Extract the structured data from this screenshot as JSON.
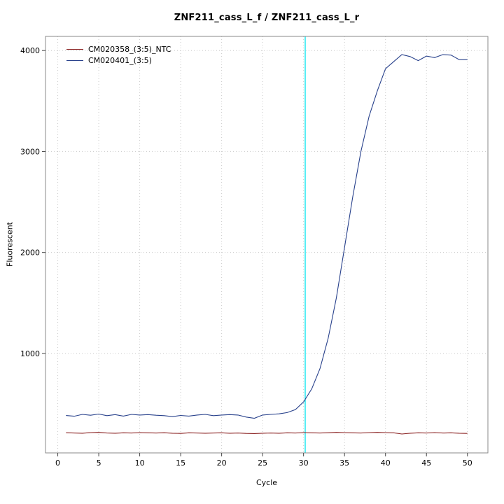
{
  "chart_data": {
    "type": "line",
    "title": "ZNF211_cass_L_f / ZNF211_cass_L_r",
    "xlabel": "Cycle",
    "ylabel": "Fluorescent",
    "xlim": [
      -1.5,
      52.5
    ],
    "ylim": [
      15,
      4140
    ],
    "xticks": [
      0,
      5,
      10,
      15,
      20,
      25,
      30,
      35,
      40,
      45,
      50
    ],
    "yticks": [
      1000,
      2000,
      3000,
      4000
    ],
    "grid": true,
    "legend_position": "top-left",
    "threshold_line": {
      "x": 30.2,
      "color": "#00e5ee"
    },
    "x": [
      1,
      2,
      3,
      4,
      5,
      6,
      7,
      8,
      9,
      10,
      11,
      12,
      13,
      14,
      15,
      16,
      17,
      18,
      19,
      20,
      21,
      22,
      23,
      24,
      25,
      26,
      27,
      28,
      29,
      30,
      31,
      32,
      33,
      34,
      35,
      36,
      37,
      38,
      39,
      40,
      41,
      42,
      43,
      44,
      45,
      46,
      47,
      48,
      49,
      50
    ],
    "series": [
      {
        "name": "CM020358_(3:5)_NTC",
        "color": "#8b2323",
        "values": [
          215,
          212,
          210,
          216,
          218,
          212,
          210,
          214,
          212,
          216,
          214,
          212,
          215,
          210,
          208,
          214,
          212,
          210,
          212,
          214,
          210,
          212,
          208,
          206,
          210,
          212,
          210,
          214,
          212,
          216,
          214,
          212,
          215,
          218,
          216,
          214,
          212,
          216,
          218,
          216,
          214,
          202,
          210,
          214,
          212,
          216,
          212,
          214,
          210,
          208
        ]
      },
      {
        "name": "CM020401_(3:5)",
        "color": "#27408b",
        "values": [
          385,
          378,
          396,
          388,
          400,
          384,
          394,
          380,
          396,
          390,
          394,
          388,
          384,
          374,
          386,
          380,
          390,
          396,
          384,
          390,
          394,
          390,
          370,
          358,
          390,
          396,
          402,
          414,
          444,
          520,
          650,
          850,
          1150,
          1550,
          2050,
          2550,
          3000,
          3350,
          3600,
          3820,
          3890,
          3960,
          3940,
          3900,
          3945,
          3930,
          3960,
          3955,
          3910,
          3910
        ]
      }
    ]
  }
}
